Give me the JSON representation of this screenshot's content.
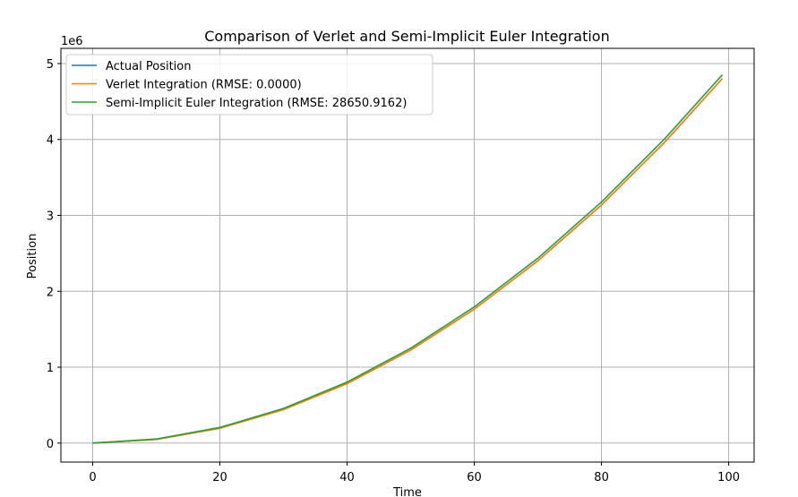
{
  "chart_data": {
    "type": "line",
    "title": "Comparison of Verlet and Semi-Implicit Euler Integration",
    "xlabel": "Time",
    "ylabel": "Position",
    "y_offset_label": "1e6",
    "xlim": [
      -5,
      104
    ],
    "ylim": [
      -0.25,
      5.2
    ],
    "x_ticks": [
      0,
      20,
      40,
      60,
      80,
      100
    ],
    "y_ticks": [
      0,
      1,
      2,
      3,
      4,
      5
    ],
    "grid": true,
    "legend_position": "upper-left",
    "x": [
      0,
      10,
      20,
      30,
      40,
      50,
      60,
      70,
      80,
      90,
      99
    ],
    "series": [
      {
        "name": "Actual Position",
        "color": "#1f77b4",
        "values": [
          0,
          0.049,
          0.196,
          0.441,
          0.784,
          1.225,
          1.764,
          2.401,
          3.136,
          3.969,
          4.802
        ]
      },
      {
        "name": "Verlet Integration (RMSE: 0.0000)",
        "color": "#ff7f0e",
        "values": [
          0,
          0.049,
          0.196,
          0.441,
          0.784,
          1.225,
          1.764,
          2.401,
          3.136,
          3.969,
          4.802
        ]
      },
      {
        "name": "Semi-Implicit Euler Integration (RMSE: 28650.9162)",
        "color": "#2ca02c",
        "values": [
          0,
          0.054,
          0.206,
          0.456,
          0.804,
          1.25,
          1.794,
          2.436,
          3.176,
          4.014,
          4.851
        ]
      }
    ]
  }
}
